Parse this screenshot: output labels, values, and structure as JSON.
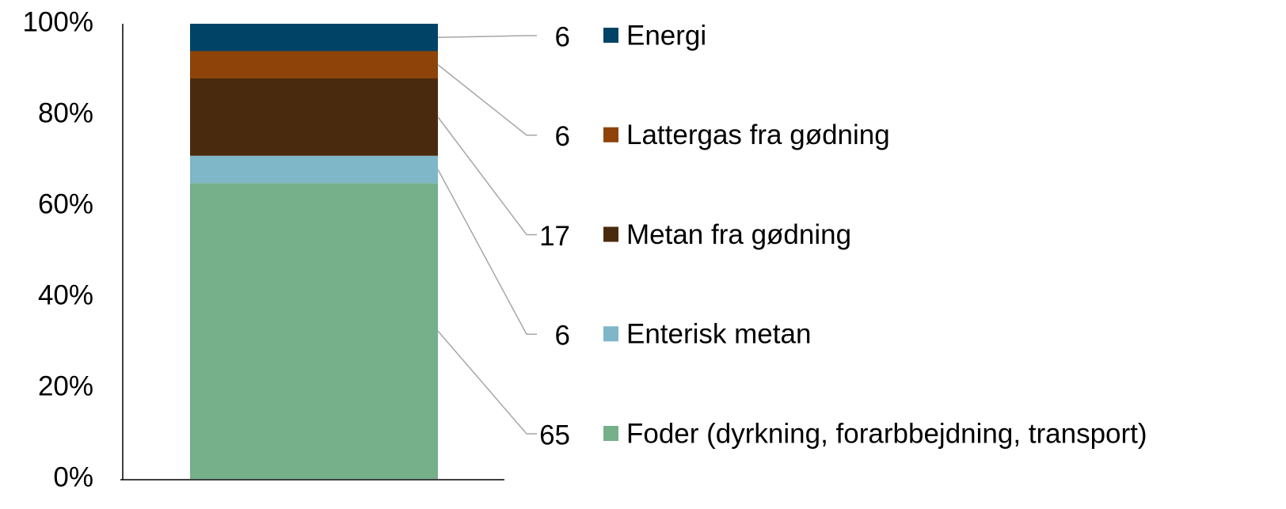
{
  "chart_data": {
    "type": "bar",
    "stacked": true,
    "series": [
      {
        "name": "Foder (dyrkning, forarbbejdning, transport)",
        "color": "#75b08a",
        "values": [
          65
        ]
      },
      {
        "name": "Enterisk metan",
        "color": "#7fb7c8",
        "values": [
          6
        ]
      },
      {
        "name": "Metan fra gødning",
        "color": "#4a2a0e",
        "values": [
          17
        ]
      },
      {
        "name": "Lattergas fra gødning",
        "color": "#8e4309",
        "values": [
          6
        ]
      },
      {
        "name": "Energi",
        "color": "#004366",
        "values": [
          6
        ]
      }
    ],
    "ylim": [
      0,
      100
    ],
    "yticks": [
      {
        "value": 0,
        "label": "0%"
      },
      {
        "value": 20,
        "label": "20%"
      },
      {
        "value": 40,
        "label": "40%"
      },
      {
        "value": 60,
        "label": "60%"
      },
      {
        "value": 80,
        "label": "80%"
      },
      {
        "value": 100,
        "label": "100%"
      }
    ],
    "legend": "right"
  }
}
